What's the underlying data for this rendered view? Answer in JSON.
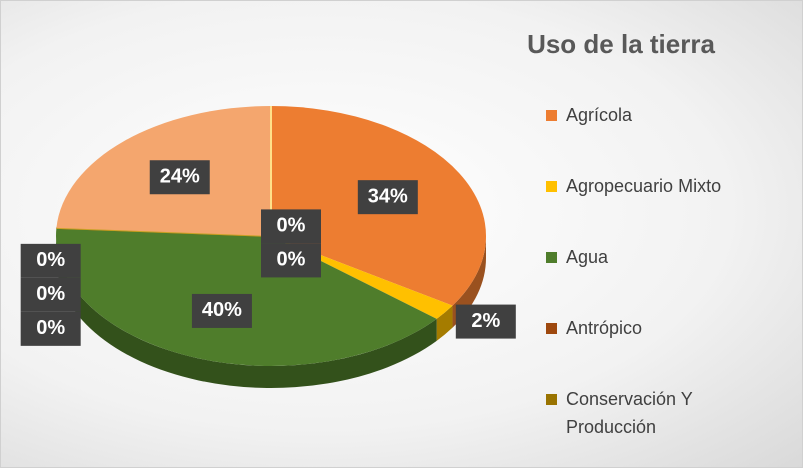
{
  "chart_data": {
    "type": "pie",
    "title": "Uso de la tierra",
    "categories": [
      "Agrícola",
      "Agropecuario Mixto",
      "Agua",
      "Antrópico",
      "Conservación Y Producción",
      null,
      null,
      null,
      null
    ],
    "values": [
      34,
      2,
      40,
      0,
      0,
      0,
      24,
      0,
      0
    ],
    "value_labels": [
      "34%",
      "2%",
      "40%",
      "0%",
      "0%",
      "0%",
      "24%",
      "0%",
      "0%"
    ],
    "colors": [
      "#ed7d31",
      "#ffc000",
      "#4f7d2b",
      "#9e480e",
      "#997300",
      "#c9a227",
      "#f4a66e",
      "#ffcd33",
      "#ffe08a"
    ]
  }
}
